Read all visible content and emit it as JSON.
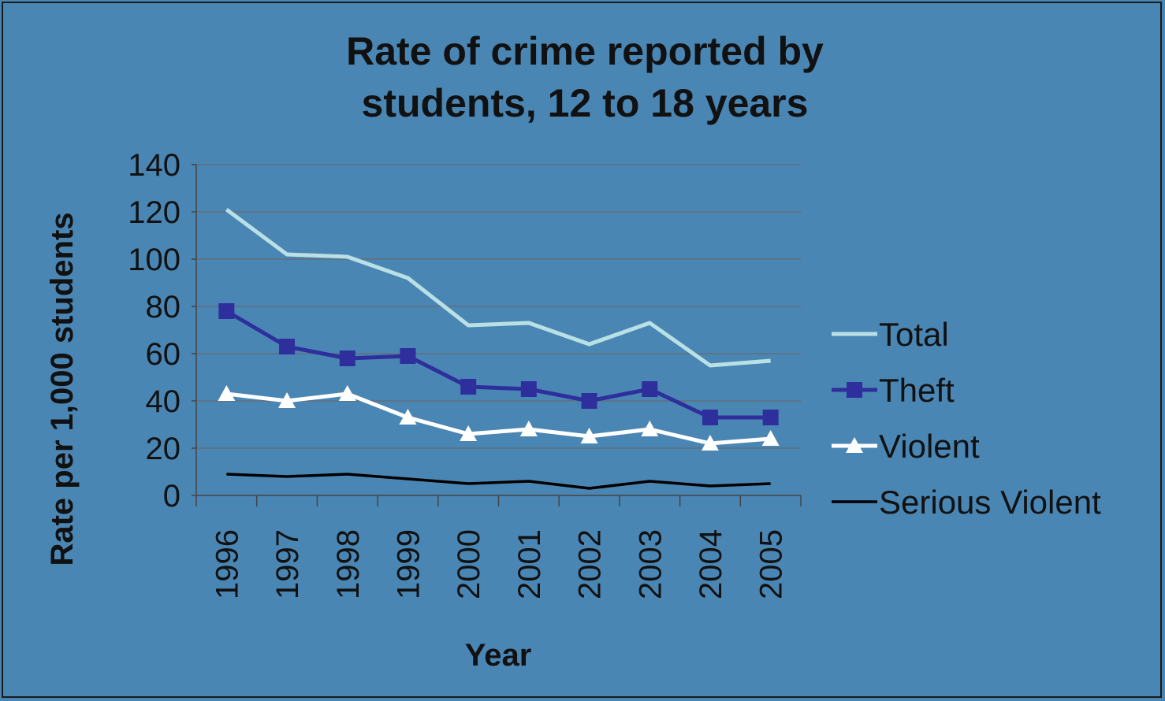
{
  "chart_data": {
    "type": "line",
    "title_lines": [
      "Rate of crime reported by",
      "students, 12 to 18 years"
    ],
    "xlabel": "Year",
    "ylabel": "Rate per 1,000 students",
    "categories": [
      "1996",
      "1997",
      "1998",
      "1999",
      "2000",
      "2001",
      "2002",
      "2003",
      "2004",
      "2005"
    ],
    "ylim": [
      0,
      140
    ],
    "yticks": [
      "0",
      "20",
      "40",
      "60",
      "80",
      "100",
      "120",
      "140"
    ],
    "grid": true,
    "legend_position": "right",
    "series": [
      {
        "name": "Total",
        "values": [
          121,
          102,
          101,
          92,
          72,
          73,
          64,
          73,
          55,
          57
        ],
        "color": "#b9e0e4",
        "marker": "none"
      },
      {
        "name": "Theft",
        "values": [
          78,
          63,
          58,
          59,
          46,
          45,
          40,
          45,
          33,
          33
        ],
        "color": "#2e2f9c",
        "marker": "square"
      },
      {
        "name": "Violent",
        "values": [
          43,
          40,
          43,
          33,
          26,
          28,
          25,
          28,
          22,
          24
        ],
        "color": "#ffffff",
        "marker": "triangle"
      },
      {
        "name": "Serious Violent",
        "values": [
          9,
          8,
          9,
          7,
          5,
          6,
          3,
          6,
          4,
          5
        ],
        "color": "#000000",
        "marker": "none"
      }
    ]
  }
}
